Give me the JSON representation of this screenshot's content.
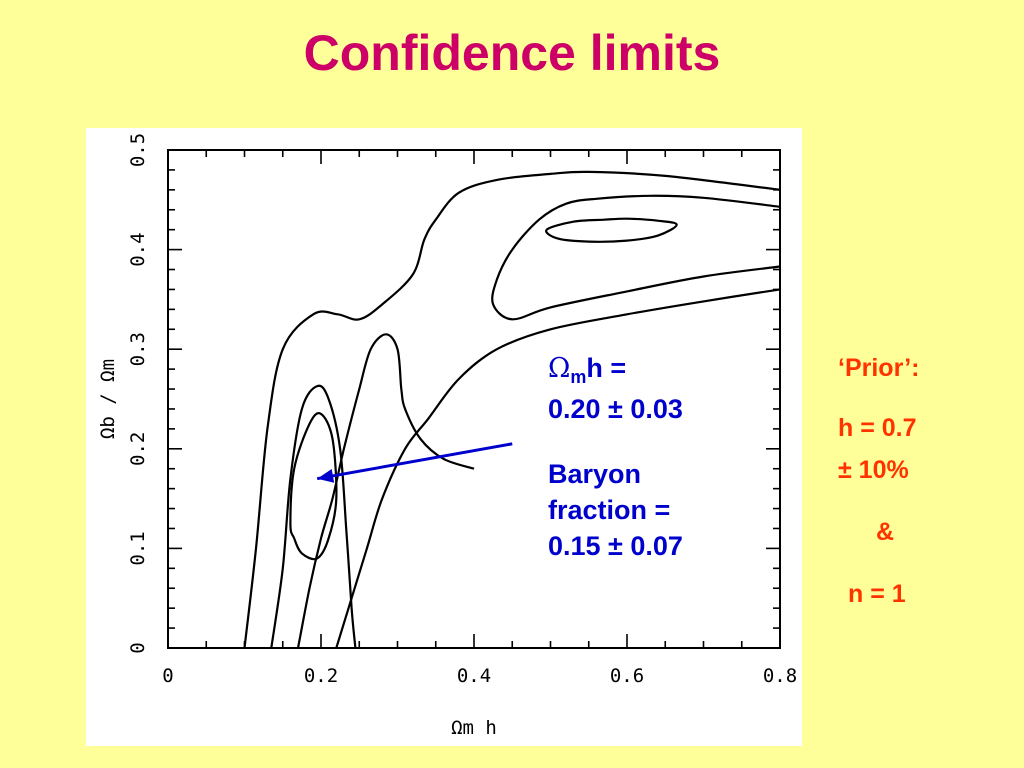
{
  "slide": {
    "title": "Confidence limits"
  },
  "chart_data": {
    "type": "contour",
    "xlabel": "Ωm h",
    "ylabel": "Ωb / Ωm",
    "xlim": [
      0,
      0.8
    ],
    "ylim": [
      0,
      0.5
    ],
    "x_ticks": [
      "0",
      "0.2",
      "0.4",
      "0.6",
      "0.8"
    ],
    "y_ticks": [
      "0",
      "0.1",
      "0.2",
      "0.3",
      "0.4",
      "0.5"
    ],
    "contours": [
      {
        "name": "inner-left-loop",
        "closed": true,
        "points": [
          [
            0.16,
            0.125
          ],
          [
            0.165,
            0.18
          ],
          [
            0.185,
            0.225
          ],
          [
            0.2,
            0.235
          ],
          [
            0.215,
            0.21
          ],
          [
            0.22,
            0.15
          ],
          [
            0.21,
            0.11
          ],
          [
            0.195,
            0.09
          ],
          [
            0.175,
            0.095
          ],
          [
            0.165,
            0.11
          ]
        ]
      },
      {
        "name": "inner-right-loop",
        "closed": true,
        "points": [
          [
            0.495,
            0.42
          ],
          [
            0.53,
            0.428
          ],
          [
            0.57,
            0.43
          ],
          [
            0.6,
            0.431
          ],
          [
            0.64,
            0.429
          ],
          [
            0.665,
            0.425
          ],
          [
            0.64,
            0.414
          ],
          [
            0.6,
            0.409
          ],
          [
            0.55,
            0.408
          ],
          [
            0.51,
            0.411
          ]
        ]
      },
      {
        "name": "middle-left-contour",
        "closed": false,
        "points": [
          [
            0.135,
            0
          ],
          [
            0.15,
            0.08
          ],
          [
            0.16,
            0.17
          ],
          [
            0.175,
            0.24
          ],
          [
            0.195,
            0.263
          ],
          [
            0.21,
            0.25
          ],
          [
            0.225,
            0.2
          ],
          [
            0.233,
            0.12
          ],
          [
            0.24,
            0.04
          ],
          [
            0.245,
            0
          ]
        ]
      },
      {
        "name": "middle-right-contour",
        "closed": false,
        "points": [
          [
            0.8,
            0.383
          ],
          [
            0.7,
            0.373
          ],
          [
            0.6,
            0.358
          ],
          [
            0.5,
            0.342
          ],
          [
            0.45,
            0.33
          ],
          [
            0.425,
            0.345
          ],
          [
            0.43,
            0.37
          ],
          [
            0.45,
            0.4
          ],
          [
            0.485,
            0.43
          ],
          [
            0.52,
            0.446
          ],
          [
            0.56,
            0.451
          ],
          [
            0.63,
            0.454
          ],
          [
            0.7,
            0.452
          ],
          [
            0.8,
            0.443
          ]
        ]
      },
      {
        "name": "outer-left-contour",
        "closed": false,
        "points": [
          [
            0.1,
            0
          ],
          [
            0.115,
            0.1
          ],
          [
            0.13,
            0.22
          ],
          [
            0.15,
            0.3
          ],
          [
            0.19,
            0.335
          ],
          [
            0.222,
            0.335
          ],
          [
            0.25,
            0.33
          ],
          [
            0.28,
            0.345
          ],
          [
            0.32,
            0.375
          ],
          [
            0.335,
            0.41
          ],
          [
            0.35,
            0.43
          ],
          [
            0.38,
            0.457
          ],
          [
            0.43,
            0.47
          ],
          [
            0.5,
            0.476
          ],
          [
            0.55,
            0.478
          ],
          [
            0.65,
            0.474
          ],
          [
            0.8,
            0.46
          ]
        ]
      },
      {
        "name": "outer-mid-contour",
        "closed": false,
        "points": [
          [
            0.17,
            0
          ],
          [
            0.185,
            0.06
          ],
          [
            0.2,
            0.11
          ],
          [
            0.215,
            0.15
          ],
          [
            0.23,
            0.2
          ],
          [
            0.25,
            0.26
          ],
          [
            0.265,
            0.3
          ],
          [
            0.285,
            0.315
          ],
          [
            0.3,
            0.3
          ],
          [
            0.305,
            0.26
          ],
          [
            0.31,
            0.24
          ],
          [
            0.33,
            0.21
          ],
          [
            0.36,
            0.19
          ],
          [
            0.4,
            0.18
          ]
        ]
      },
      {
        "name": "outer-right-contour",
        "closed": false,
        "points": [
          [
            0.22,
            0
          ],
          [
            0.24,
            0.05
          ],
          [
            0.26,
            0.1
          ],
          [
            0.28,
            0.15
          ],
          [
            0.31,
            0.2
          ],
          [
            0.34,
            0.23
          ],
          [
            0.38,
            0.27
          ],
          [
            0.43,
            0.3
          ],
          [
            0.5,
            0.32
          ],
          [
            0.6,
            0.335
          ],
          [
            0.7,
            0.348
          ],
          [
            0.8,
            0.36
          ]
        ]
      }
    ],
    "arrow": {
      "from": [
        0.45,
        0.205
      ],
      "to": [
        0.195,
        0.17
      ],
      "color": "#0000cc"
    }
  },
  "annotation": {
    "omega": "Ω",
    "sub": "m",
    "h_eq": "h =",
    "omh_value": "0.20 ± 0.03",
    "baryon": "Baryon",
    "fraction": "fraction =",
    "bf_value": "0.15 ± 0.07"
  },
  "prior": {
    "label": "‘Prior’:",
    "h": "h = 0.7",
    "h_err": "± 10%",
    "amp": "&",
    "n": "n = 1"
  }
}
